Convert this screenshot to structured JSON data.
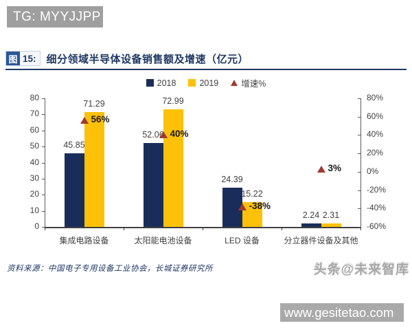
{
  "banner_top": {
    "text": "TG: MYYJJPP"
  },
  "figure": {
    "label_tag": "图",
    "label_num": "15:",
    "title": "细分领域半导体设备销售额及增速（亿元）"
  },
  "chart_data": {
    "type": "bar",
    "categories": [
      "集成电路设备",
      "太阳能电池设备",
      "LED 设备",
      "分立器件设备及其他"
    ],
    "series": [
      {
        "name": "2018",
        "kind": "bar",
        "axis": "left",
        "color": "#1a2d5a",
        "values": [
          45.85,
          52.06,
          24.39,
          2.24
        ],
        "labels": [
          "45.85",
          "52.06",
          "24.39",
          "2.24"
        ]
      },
      {
        "name": "2019",
        "kind": "bar",
        "axis": "left",
        "color": "#fdc109",
        "values": [
          71.29,
          72.99,
          15.22,
          2.31
        ],
        "labels": [
          "71.29",
          "72.99",
          "15.22",
          "2.31"
        ]
      },
      {
        "name": "增速%",
        "kind": "marker",
        "axis": "right",
        "color": "#a0392e",
        "values": [
          56,
          40,
          -38,
          3
        ],
        "labels": [
          "56%",
          "40%",
          "-38%",
          "3%"
        ]
      }
    ],
    "left_axis": {
      "min": 0,
      "max": 80,
      "ticks": [
        "0",
        "10",
        "20",
        "30",
        "40",
        "50",
        "60",
        "70",
        "80"
      ]
    },
    "right_axis": {
      "min": -60,
      "max": 80,
      "ticks": [
        "-60%",
        "-40%",
        "-20%",
        "0%",
        "20%",
        "40%",
        "60%",
        "80%"
      ]
    },
    "legend": [
      "2018",
      "2019",
      "增速%"
    ],
    "legend_position": "top",
    "grid": false,
    "colors": {
      "axis_line": "#595959",
      "baseline": "#404040",
      "tick_text": "#3f3f3f",
      "bar_label": "#3f3f3f",
      "pct_label": "#1a1a1a"
    }
  },
  "source": {
    "text": "资料来源：中国电子专用设备工业协会，长城证券研究所"
  },
  "watermark": {
    "text": "头条@未来智库"
  },
  "banner_bottom": {
    "text": "www.gesitetao.com"
  }
}
